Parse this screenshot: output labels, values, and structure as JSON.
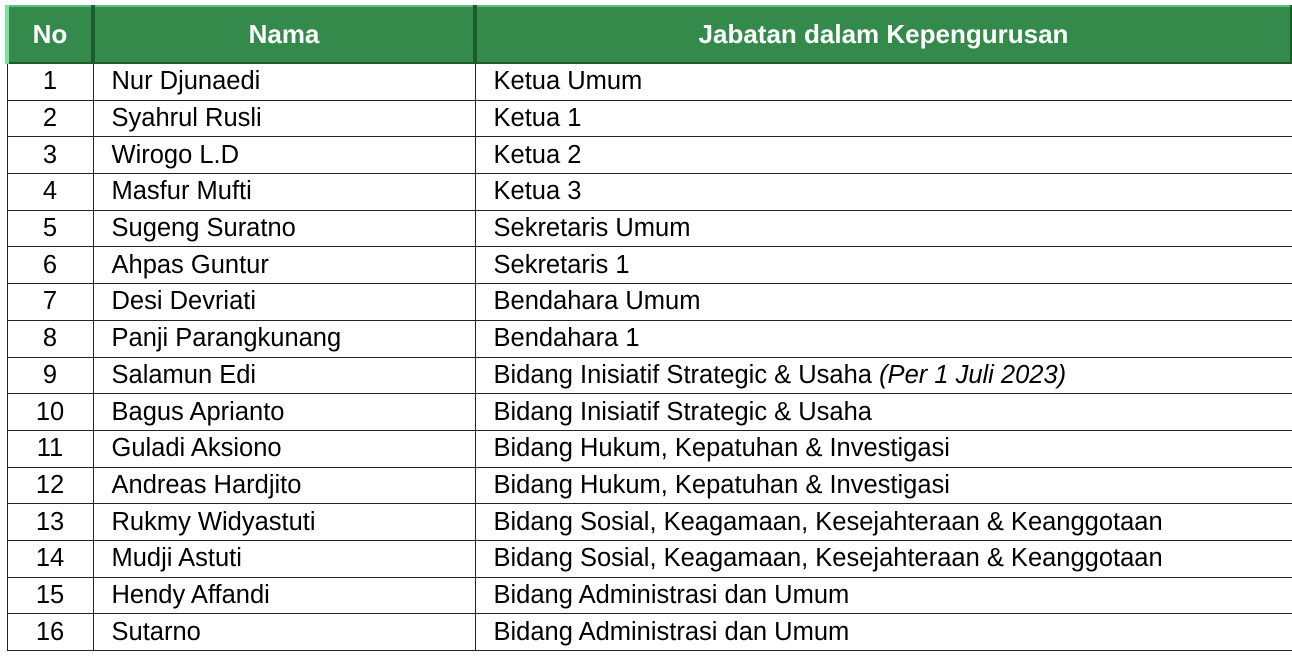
{
  "table": {
    "header_color": "#338a4a",
    "headers": [
      "No",
      "Nama",
      "Jabatan dalam Kepengurusan"
    ],
    "rows": [
      {
        "no": "1",
        "nama": "Nur Djunaedi",
        "jabatan": "Ketua Umum",
        "note": ""
      },
      {
        "no": "2",
        "nama": "Syahrul Rusli",
        "jabatan": "Ketua 1",
        "note": ""
      },
      {
        "no": "3",
        "nama": "Wirogo L.D",
        "jabatan": "Ketua 2",
        "note": ""
      },
      {
        "no": "4",
        "nama": "Masfur Mufti",
        "jabatan": "Ketua 3",
        "note": ""
      },
      {
        "no": "5",
        "nama": "Sugeng Suratno",
        "jabatan": "Sekretaris Umum",
        "note": ""
      },
      {
        "no": "6",
        "nama": "Ahpas Guntur",
        "jabatan": "Sekretaris 1",
        "note": ""
      },
      {
        "no": "7",
        "nama": "Desi Devriati",
        "jabatan": "Bendahara Umum",
        "note": ""
      },
      {
        "no": "8",
        "nama": "Panji Parangkunang",
        "jabatan": "Bendahara 1",
        "note": ""
      },
      {
        "no": "9",
        "nama": "Salamun Edi",
        "jabatan": "Bidang Inisiatif Strategic & Usaha",
        "note": "(Per 1 Juli 2023)"
      },
      {
        "no": "10",
        "nama": "Bagus Aprianto",
        "jabatan": "Bidang Inisiatif Strategic & Usaha",
        "note": ""
      },
      {
        "no": "11",
        "nama": "Guladi Aksiono",
        "jabatan": "Bidang Hukum, Kepatuhan & Investigasi",
        "note": ""
      },
      {
        "no": "12",
        "nama": "Andreas Hardjito",
        "jabatan": "Bidang Hukum, Kepatuhan & Investigasi",
        "note": ""
      },
      {
        "no": "13",
        "nama": "Rukmy Widyastuti",
        "jabatan": "Bidang Sosial, Keagamaan, Kesejahteraan & Keanggotaan",
        "note": ""
      },
      {
        "no": "14",
        "nama": "Mudji Astuti",
        "jabatan": "Bidang Sosial, Keagamaan, Kesejahteraan & Keanggotaan",
        "note": ""
      },
      {
        "no": "15",
        "nama": "Hendy Affandi",
        "jabatan": "Bidang Administrasi dan Umum",
        "note": ""
      },
      {
        "no": "16",
        "nama": "Sutarno",
        "jabatan": "Bidang Administrasi dan Umum",
        "note": ""
      }
    ]
  }
}
